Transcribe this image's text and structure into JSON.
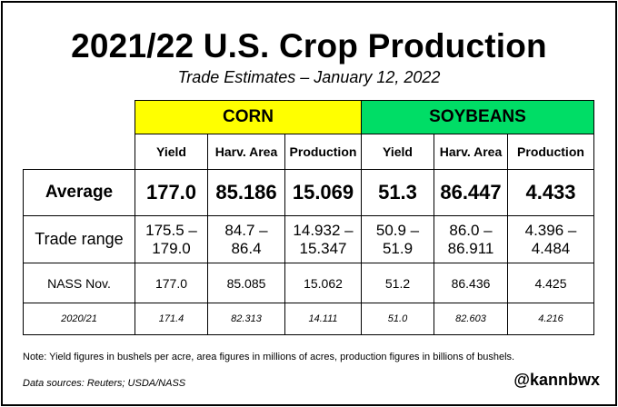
{
  "title": "2021/22 U.S. Crop Production",
  "subtitle": "Trade Estimates – January 12, 2022",
  "colors": {
    "corn_header": "#ffff00",
    "soybeans_header": "#00dd66"
  },
  "table": {
    "groups": {
      "corn": "CORN",
      "soybeans": "SOYBEANS"
    },
    "columns": [
      "Yield",
      "Harv. Area",
      "Production",
      "Yield",
      "Harv. Area",
      "Production"
    ],
    "rows": [
      {
        "label": "Average",
        "values": [
          "177.0",
          "85.186",
          "15.069",
          "51.3",
          "86.447",
          "4.433"
        ]
      },
      {
        "label": "Trade range",
        "values": [
          [
            "175.5 –",
            "179.0"
          ],
          [
            "84.7 –",
            "86.4"
          ],
          [
            "14.932 –",
            "15.347"
          ],
          [
            "50.9 –",
            "51.9"
          ],
          [
            "86.0 –",
            "86.911"
          ],
          [
            "4.396 –",
            "4.484"
          ]
        ]
      },
      {
        "label": "NASS Nov.",
        "values": [
          "177.0",
          "85.085",
          "15.062",
          "51.2",
          "86.436",
          "4.425"
        ]
      },
      {
        "label": "2020/21",
        "values": [
          "171.4",
          "82.313",
          "14.111",
          "51.0",
          "82.603",
          "4.216"
        ]
      }
    ]
  },
  "note": "Note: Yield figures in bushels per acre, area figures in millions of acres, production figures in billions of bushels.",
  "sources": "Data sources: Reuters; USDA/NASS",
  "handle": "@kannbwx"
}
